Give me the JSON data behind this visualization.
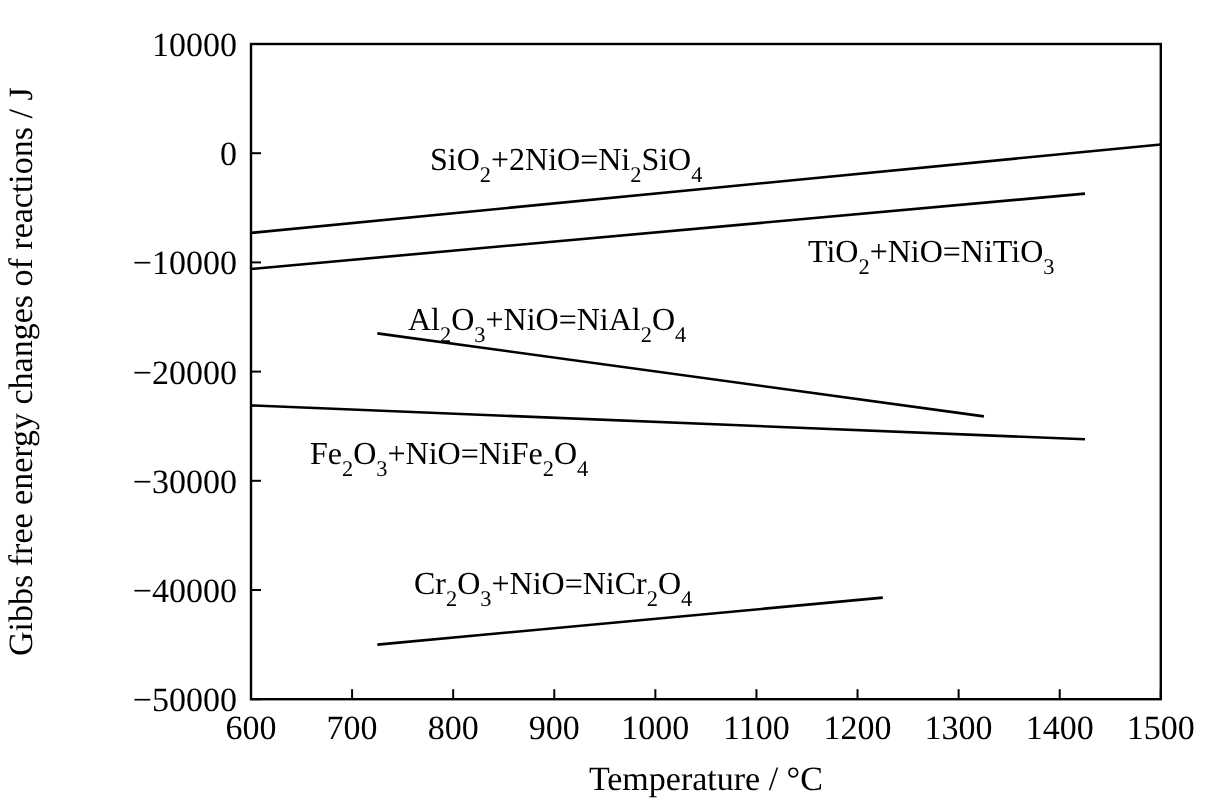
{
  "chart_data": {
    "type": "line",
    "xlabel": "Temperature / °C",
    "ylabel": "Gibbs free energy changes of reactions / J",
    "xlim": [
      600,
      1500
    ],
    "ylim": [
      -50000,
      10000
    ],
    "xticks": [
      600,
      700,
      800,
      900,
      1000,
      1100,
      1200,
      1300,
      1400,
      1500
    ],
    "yticks": [
      -50000,
      -40000,
      -30000,
      -20000,
      -10000,
      0,
      10000
    ],
    "marker": "none",
    "line_style": "solid",
    "series": [
      {
        "name": "SiO$_{2}$+2NiO=Ni$_{2}$SiO$_{4}$",
        "color": "#000000",
        "x": [
          600,
          1500
        ],
        "values": [
          -7300,
          800
        ]
      },
      {
        "name": "TiO$_{2}$+NiO=NiTiO$_{3}$",
        "color": "#000000",
        "x": [
          600,
          1425
        ],
        "values": [
          -10600,
          -3700
        ]
      },
      {
        "name": "Al$_{2}$O$_{3}$+NiO=NiAl$_{2}$O$_{4}$",
        "color": "#000000",
        "x": [
          725,
          1325
        ],
        "values": [
          -16500,
          -24100
        ]
      },
      {
        "name": "Fe$_{2}$O$_{3}$+NiO=NiFe$_{2}$O$_{4}$",
        "color": "#000000",
        "x": [
          600,
          1425
        ],
        "values": [
          -23100,
          -26200
        ]
      },
      {
        "name": "Cr$_{2}$O$_{3}$+NiO=NiCr$_{2}$O$_{4}$",
        "color": "#000000",
        "x": [
          725,
          1225
        ],
        "values": [
          -45000,
          -40700
        ]
      }
    ]
  }
}
